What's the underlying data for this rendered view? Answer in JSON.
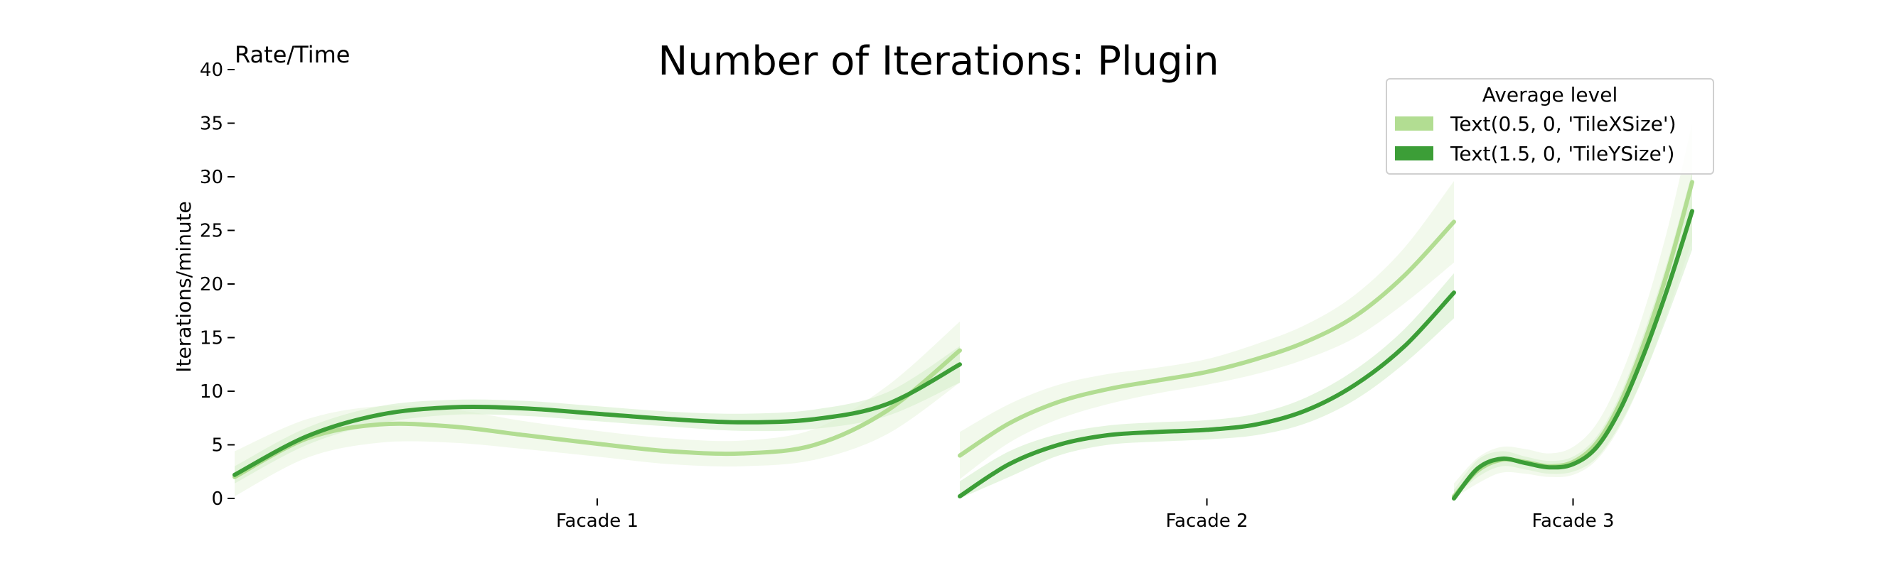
{
  "chart_data": {
    "type": "line",
    "title": "Number of Iterations: Plugin",
    "corner_note": "Rate/Time",
    "xlabel": "",
    "ylabel": "Iterations/minute",
    "ylim": [
      0,
      40
    ],
    "yticks": [
      0,
      5,
      10,
      15,
      20,
      25,
      30,
      35,
      40
    ],
    "grid": false,
    "legend": {
      "title": "Average level",
      "placement": "top-right",
      "entries": [
        "Text(0.5, 0, 'TileXSize')",
        "Text(1.5, 0, 'TileYSize')"
      ]
    },
    "colors": {
      "TileXSize": "#b2dd92",
      "TileYSize": "#3c9e37",
      "TileXSize_band": "#eef7e6",
      "TileYSize_band": "#d9efd0"
    },
    "facets": [
      {
        "label": "Facade 1",
        "x": [
          0,
          0.1,
          0.2,
          0.3,
          0.4,
          0.5,
          0.6,
          0.7,
          0.8,
          0.9,
          1.0
        ],
        "series": [
          {
            "name": "Text(0.5, 0, 'TileXSize')",
            "values": [
              2.0,
              5.6,
              6.9,
              6.7,
              5.9,
              5.1,
              4.4,
              4.2,
              5.0,
              8.2,
              13.8
            ],
            "lower": [
              0.2,
              3.8,
              5.2,
              5.2,
              4.6,
              3.9,
              3.2,
              3.0,
              3.6,
              6.0,
              10.8
            ],
            "upper": [
              4.4,
              7.4,
              8.6,
              8.3,
              7.2,
              6.3,
              5.6,
              5.4,
              6.5,
              10.5,
              16.5
            ]
          },
          {
            "name": "Text(1.5, 0, 'TileYSize')",
            "values": [
              2.2,
              5.8,
              7.8,
              8.5,
              8.4,
              7.9,
              7.4,
              7.1,
              7.4,
              8.8,
              12.5
            ],
            "lower": [
              1.4,
              5.0,
              7.0,
              7.8,
              7.7,
              7.2,
              6.7,
              6.3,
              6.5,
              7.7,
              10.8
            ],
            "upper": [
              3.0,
              6.6,
              8.6,
              9.2,
              9.1,
              8.6,
              8.1,
              7.9,
              8.3,
              9.9,
              14.2
            ]
          }
        ]
      },
      {
        "label": "Facade 2",
        "x": [
          0,
          0.1,
          0.2,
          0.3,
          0.4,
          0.5,
          0.6,
          0.7,
          0.8,
          0.9,
          1.0
        ],
        "series": [
          {
            "name": "Text(0.5, 0, 'TileXSize')",
            "values": [
              4.0,
              7.0,
              9.0,
              10.2,
              11.0,
              11.8,
              13.0,
              14.6,
              17.0,
              20.8,
              25.8
            ],
            "lower": [
              1.8,
              5.2,
              7.4,
              8.8,
              9.8,
              10.6,
              11.6,
              13.0,
              15.0,
              18.2,
              22.0
            ],
            "upper": [
              6.2,
              8.8,
              10.6,
              11.6,
              12.2,
              13.0,
              14.4,
              16.2,
              19.0,
              23.4,
              29.6
            ]
          },
          {
            "name": "Text(1.5, 0, 'TileYSize')",
            "values": [
              0.2,
              3.2,
              5.0,
              5.9,
              6.2,
              6.4,
              6.9,
              8.2,
              10.6,
              14.2,
              19.2
            ],
            "lower": [
              0,
              2.0,
              4.0,
              5.0,
              5.3,
              5.5,
              5.9,
              7.0,
              9.2,
              12.6,
              16.8
            ],
            "upper": [
              1.6,
              4.4,
              6.0,
              6.8,
              7.1,
              7.3,
              7.9,
              9.4,
              12.0,
              15.8,
              21.0
            ]
          }
        ]
      },
      {
        "label": "Facade 3",
        "x": [
          0,
          0.1,
          0.2,
          0.3,
          0.4,
          0.5,
          0.6,
          0.7,
          0.8,
          0.9,
          1.0
        ],
        "series": [
          {
            "name": "Text(0.5, 0, 'TileXSize')",
            "values": [
              0.2,
              2.6,
              3.6,
              3.4,
              3.0,
              3.4,
              5.2,
              9.0,
              14.6,
              21.4,
              29.5
            ],
            "lower": [
              0,
              1.4,
              2.4,
              2.3,
              2.0,
              2.2,
              3.6,
              6.8,
              11.6,
              17.6,
              24.0
            ],
            "upper": [
              1.4,
              3.8,
              4.8,
              4.6,
              4.2,
              4.8,
              7.0,
              11.4,
              17.6,
              25.4,
              35.0
            ]
          },
          {
            "name": "Text(1.5, 0, 'TileYSize')",
            "values": [
              0,
              2.8,
              3.7,
              3.3,
              2.9,
              3.2,
              4.8,
              8.4,
              13.6,
              19.8,
              26.8
            ],
            "lower": [
              0,
              2.0,
              3.0,
              2.7,
              2.3,
              2.5,
              3.8,
              7.0,
              11.6,
              17.2,
              23.2
            ],
            "upper": [
              0.8,
              3.6,
              4.4,
              3.9,
              3.5,
              3.9,
              5.8,
              9.8,
              15.6,
              22.4,
              30.4
            ]
          }
        ]
      }
    ]
  }
}
